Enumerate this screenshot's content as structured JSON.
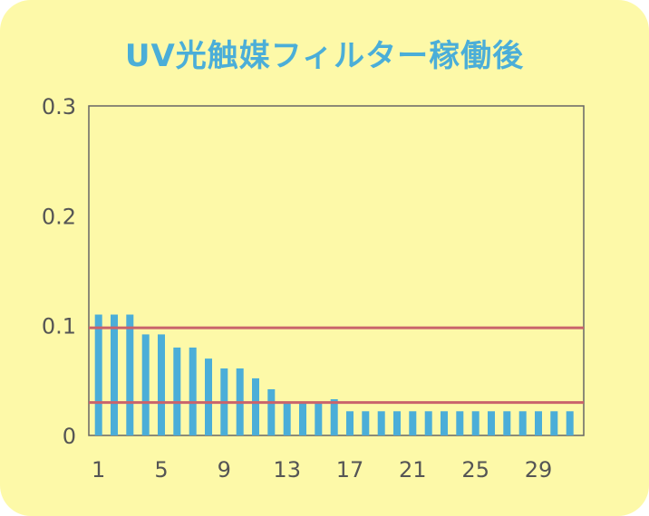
{
  "chart_data": {
    "type": "bar",
    "title": "UV光触媒フィルター稼働後",
    "xlabel": "",
    "ylabel": "",
    "ylim": [
      0,
      0.3
    ],
    "yticks": [
      "0.3",
      "0.2",
      "0.1",
      "0"
    ],
    "ytick_values": [
      0.3,
      0.2,
      0.1,
      0
    ],
    "xticks": [
      "1",
      "5",
      "9",
      "13",
      "17",
      "21",
      "25",
      "29"
    ],
    "xtick_values": [
      1,
      5,
      9,
      13,
      17,
      21,
      25,
      29
    ],
    "categories": [
      1,
      2,
      3,
      4,
      5,
      6,
      7,
      8,
      9,
      10,
      11,
      12,
      13,
      14,
      15,
      16,
      17,
      18,
      19,
      20,
      21,
      22,
      23,
      24,
      25,
      26,
      27,
      28,
      29,
      30,
      31
    ],
    "values": [
      0.11,
      0.11,
      0.11,
      0.092,
      0.092,
      0.08,
      0.08,
      0.07,
      0.061,
      0.061,
      0.052,
      0.042,
      0.03,
      0.03,
      0.03,
      0.033,
      0.022,
      0.022,
      0.022,
      0.022,
      0.022,
      0.022,
      0.022,
      0.022,
      0.022,
      0.022,
      0.022,
      0.022,
      0.022,
      0.022,
      0.022
    ],
    "reference_lines": [
      0.098,
      0.03
    ],
    "grid": false,
    "legend": "none",
    "colors": {
      "bar": "#4baed8",
      "reference_line": "#c9636b",
      "background": "#fdf9a8",
      "title": "#4baed8",
      "axis": "#666666"
    }
  }
}
